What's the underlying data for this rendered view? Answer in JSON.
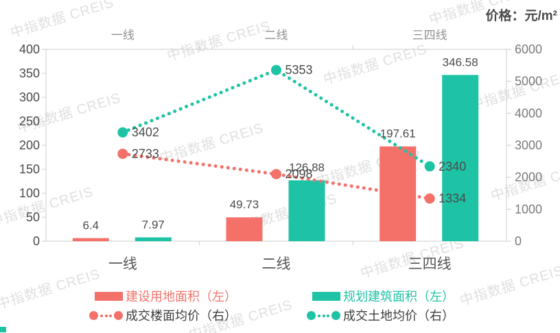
{
  "title": "价格：元/m²",
  "watermark": {
    "text": "中指数据 CREIS"
  },
  "colors": {
    "red": "#F4716A",
    "teal": "#1EC3A5",
    "dark": "#3d3d3d",
    "axis": "#cccccc",
    "left_tick_label": "#4a4a4a",
    "right_tick_label": "#7a7a7a",
    "top_category_label": "#8f8f8f",
    "bottom_category_label": "#565656",
    "value_label": "#4a4a4a",
    "corner_mark": "#1EC3A5"
  },
  "chart_data": {
    "type": "combo-bar-line",
    "title": "价格：元/m²",
    "categories": [
      "一线",
      "二线",
      "三四线"
    ],
    "series": [
      {
        "name": "建设用地面积（左）",
        "type": "bar",
        "axis": "left",
        "color_key": "red",
        "values": [
          6.4,
          49.73,
          197.61
        ],
        "labels": [
          "6.4",
          "49.73",
          "197.61"
        ]
      },
      {
        "name": "规划建筑面积（左）",
        "type": "bar",
        "axis": "left",
        "color_key": "teal",
        "values": [
          7.97,
          126.88,
          346.58
        ],
        "labels": [
          "7.97",
          "126.88",
          "346.58"
        ]
      },
      {
        "name": "成交楼面均价（右）",
        "type": "line",
        "axis": "right",
        "color_key": "red",
        "values": [
          2733,
          2098,
          1334
        ],
        "labels": [
          "2733",
          "2098",
          "1334"
        ]
      },
      {
        "name": "成交土地均价（右）",
        "type": "line",
        "axis": "right",
        "color_key": "teal",
        "values": [
          3402,
          5353,
          2340
        ],
        "labels": [
          "3402",
          "5353",
          "2340"
        ]
      }
    ],
    "left_axis": {
      "min": 0,
      "max": 400,
      "ticks": [
        0,
        50,
        100,
        150,
        200,
        250,
        300,
        350,
        400
      ]
    },
    "right_axis": {
      "min": 0,
      "max": 6000,
      "ticks": [
        0,
        1000,
        2000,
        3000,
        4000,
        5000,
        6000
      ]
    },
    "grid": false,
    "legend_position": "bottom",
    "category_labels_top": true,
    "category_labels_bottom": true
  },
  "legend": {
    "items": [
      {
        "label": "建设用地面积（左）",
        "marker": "bar",
        "color_key": "red",
        "text_color_key": "red"
      },
      {
        "label": "规划建筑面积（左）",
        "marker": "bar",
        "color_key": "teal",
        "text_color_key": "teal"
      },
      {
        "label": "成交楼面均价（右）",
        "marker": "dotted-line",
        "color_key": "red",
        "text_color_key": "dark"
      },
      {
        "label": "成交土地均价（右）",
        "marker": "dotted-line",
        "color_key": "teal",
        "text_color_key": "dark"
      }
    ]
  }
}
